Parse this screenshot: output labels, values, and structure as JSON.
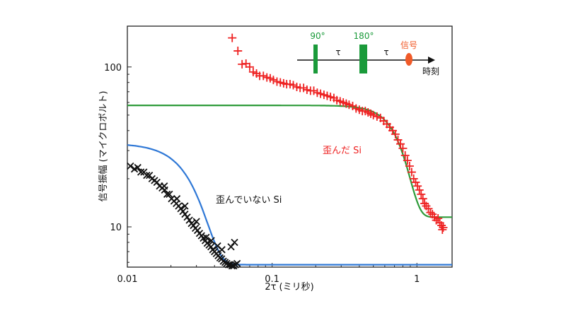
{
  "chart_data": {
    "type": "scatter",
    "x_scale": "log",
    "y_scale": "log",
    "xlim": [
      0.01,
      1.75
    ],
    "ylim": [
      5.6,
      180
    ],
    "xlabel": "2τ (ミリ秒)",
    "ylabel": "信号振幅 (マイクロボルト)",
    "x_ticks": [
      {
        "value": 0.01,
        "label": "0.01"
      },
      {
        "value": 0.1,
        "label": "0.1"
      },
      {
        "value": 1,
        "label": "1"
      }
    ],
    "y_ticks": [
      {
        "value": 10,
        "label": "10"
      },
      {
        "value": 100,
        "label": "100"
      }
    ],
    "series": [
      {
        "name": "歪んだ Si",
        "marker": "plus",
        "color": "#ee2222",
        "points": [
          [
            0.053,
            152
          ],
          [
            0.058,
            126
          ],
          [
            0.062,
            104
          ],
          [
            0.066,
            105
          ],
          [
            0.07,
            100
          ],
          [
            0.074,
            93
          ],
          [
            0.078,
            91
          ],
          [
            0.082,
            88
          ],
          [
            0.087,
            88
          ],
          [
            0.092,
            86
          ],
          [
            0.097,
            85
          ],
          [
            0.102,
            83
          ],
          [
            0.108,
            81
          ],
          [
            0.114,
            80
          ],
          [
            0.12,
            79
          ],
          [
            0.126,
            78
          ],
          [
            0.133,
            78
          ],
          [
            0.14,
            77
          ],
          [
            0.148,
            75
          ],
          [
            0.156,
            74
          ],
          [
            0.165,
            74
          ],
          [
            0.174,
            72
          ],
          [
            0.184,
            71
          ],
          [
            0.194,
            71
          ],
          [
            0.205,
            69
          ],
          [
            0.216,
            68
          ],
          [
            0.228,
            67
          ],
          [
            0.24,
            66
          ],
          [
            0.253,
            65
          ],
          [
            0.267,
            64
          ],
          [
            0.28,
            62
          ],
          [
            0.295,
            61
          ],
          [
            0.31,
            60
          ],
          [
            0.325,
            59
          ],
          [
            0.34,
            58
          ],
          [
            0.36,
            57
          ],
          [
            0.38,
            55
          ],
          [
            0.4,
            54
          ],
          [
            0.42,
            53
          ],
          [
            0.44,
            53
          ],
          [
            0.46,
            52
          ],
          [
            0.48,
            51
          ],
          [
            0.5,
            50
          ],
          [
            0.53,
            49
          ],
          [
            0.56,
            48
          ],
          [
            0.59,
            46
          ],
          [
            0.62,
            44
          ],
          [
            0.65,
            42
          ],
          [
            0.68,
            40
          ],
          [
            0.71,
            38
          ],
          [
            0.74,
            35
          ],
          [
            0.77,
            33
          ],
          [
            0.8,
            31
          ],
          [
            0.83,
            28
          ],
          [
            0.86,
            26
          ],
          [
            0.89,
            24
          ],
          [
            0.92,
            22
          ],
          [
            0.95,
            20
          ],
          [
            0.98,
            19
          ],
          [
            1.01,
            18
          ],
          [
            1.04,
            17
          ],
          [
            1.07,
            16
          ],
          [
            1.1,
            15
          ],
          [
            1.13,
            14
          ],
          [
            1.16,
            13.5
          ],
          [
            1.2,
            13
          ],
          [
            1.24,
            12.3
          ],
          [
            1.28,
            12
          ],
          [
            1.32,
            11.5
          ],
          [
            1.36,
            11
          ],
          [
            1.4,
            11.3
          ],
          [
            1.44,
            10.6
          ],
          [
            1.48,
            10.2
          ],
          [
            1.5,
            9.6
          ],
          [
            1.52,
            9.9
          ]
        ]
      },
      {
        "name": "歪んでいない Si",
        "marker": "x",
        "color": "#111111",
        "points": [
          [
            0.0105,
            24
          ],
          [
            0.0112,
            23
          ],
          [
            0.0118,
            23.5
          ],
          [
            0.0124,
            22
          ],
          [
            0.013,
            22
          ],
          [
            0.0136,
            21
          ],
          [
            0.0142,
            21
          ],
          [
            0.0148,
            20
          ],
          [
            0.0154,
            19.5
          ],
          [
            0.016,
            19
          ],
          [
            0.0167,
            18
          ],
          [
            0.0174,
            17.5
          ],
          [
            0.0181,
            17
          ],
          [
            0.0188,
            16
          ],
          [
            0.0195,
            16
          ],
          [
            0.0202,
            15
          ],
          [
            0.021,
            14.5
          ],
          [
            0.0218,
            14
          ],
          [
            0.0226,
            13.5
          ],
          [
            0.0234,
            13
          ],
          [
            0.0242,
            12.5
          ],
          [
            0.025,
            12
          ],
          [
            0.0259,
            11.5
          ],
          [
            0.0268,
            11
          ],
          [
            0.0277,
            10.5
          ],
          [
            0.0286,
            10.2
          ],
          [
            0.0295,
            9.8
          ],
          [
            0.0305,
            9.5
          ],
          [
            0.0315,
            9.1
          ],
          [
            0.0325,
            8.8
          ],
          [
            0.0335,
            8.5
          ],
          [
            0.0345,
            8.2
          ],
          [
            0.0356,
            7.9
          ],
          [
            0.0367,
            7.7
          ],
          [
            0.0378,
            7.5
          ],
          [
            0.0389,
            7.2
          ],
          [
            0.04,
            7.0
          ],
          [
            0.0412,
            6.8
          ],
          [
            0.0424,
            6.6
          ],
          [
            0.0436,
            6.4
          ],
          [
            0.0448,
            6.3
          ],
          [
            0.046,
            6.1
          ],
          [
            0.0473,
            6.0
          ],
          [
            0.0486,
            5.9
          ],
          [
            0.05,
            5.8
          ],
          [
            0.0514,
            5.8
          ],
          [
            0.0528,
            5.7
          ],
          [
            0.0543,
            5.7
          ],
          [
            0.0558,
            5.8
          ],
          [
            0.0573,
            5.9
          ],
          [
            0.052,
            7.5
          ],
          [
            0.055,
            8.0
          ],
          [
            0.045,
            7.2
          ],
          [
            0.042,
            7.6
          ],
          [
            0.038,
            8.2
          ],
          [
            0.035,
            8.6
          ],
          [
            0.025,
            13.5
          ],
          [
            0.022,
            15
          ],
          [
            0.018,
            18
          ],
          [
            0.03,
            10.8
          ]
        ]
      }
    ],
    "fit_curves": [
      {
        "name": "fit-strained",
        "color": "#2e9b3a",
        "plateau": 57.5,
        "amplitude": 57.5,
        "xc": 0.8,
        "power": 4.5,
        "floor": 11.5
      },
      {
        "name": "fit-unstrained",
        "color": "#2f78d6",
        "plateau": 5.8,
        "amplitude": 27.5,
        "xc": 0.03,
        "power": 3.2,
        "floor": 5.8
      }
    ],
    "annotations": [
      {
        "text": "歪んだ Si",
        "color": "#ee2222"
      },
      {
        "text": "歪んでいない Si",
        "color": "#111111"
      }
    ],
    "pulse_sequence": {
      "pulse1": "90°",
      "pulse2": "180°",
      "interval": "τ",
      "signal": "信号",
      "time_axis": "時刻",
      "pulse_color": "#1a9a3a",
      "signal_color": "#f05a28"
    }
  }
}
